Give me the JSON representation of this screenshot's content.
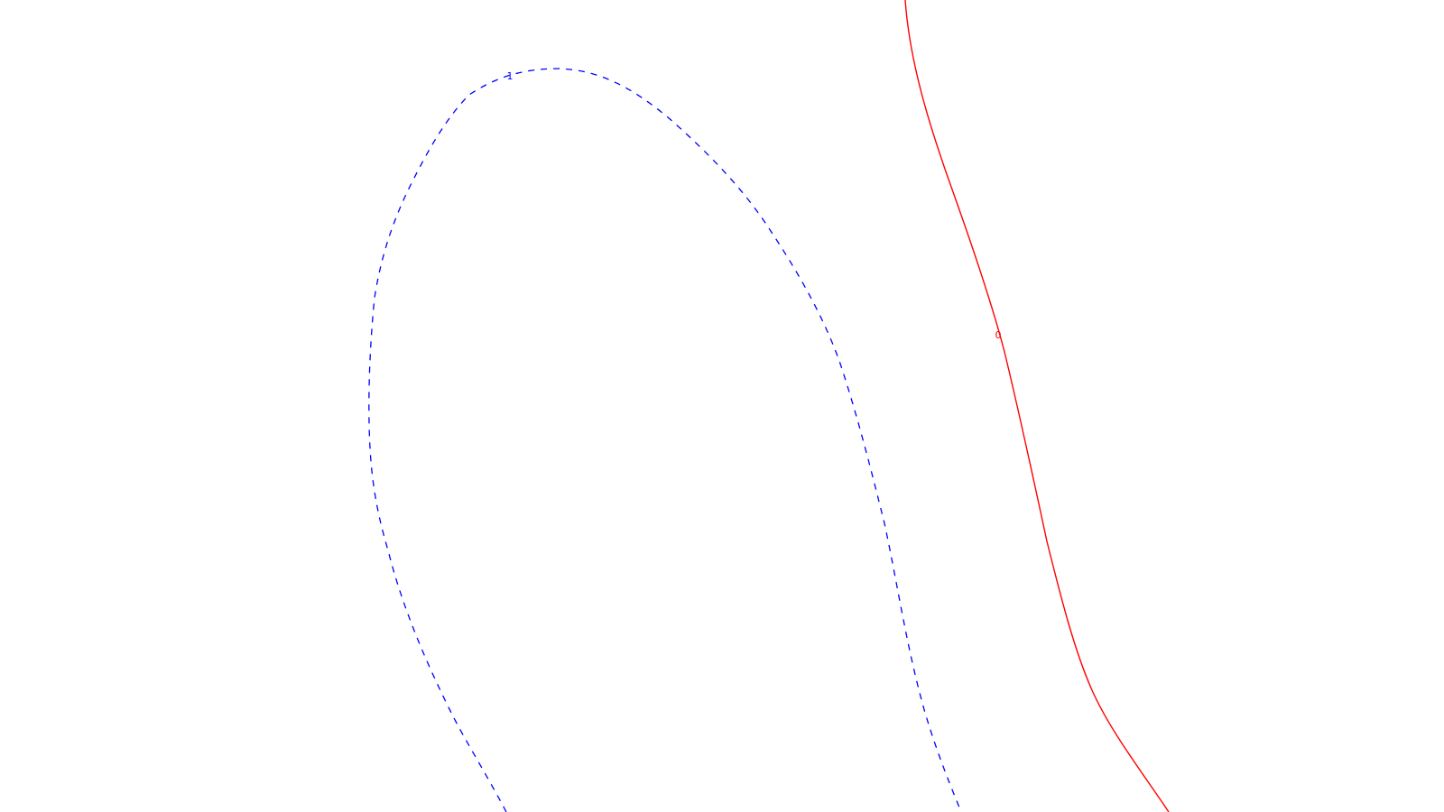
{
  "chart_data": {
    "type": "contour",
    "grid": false,
    "series": [
      {
        "level": "1",
        "line_style": "dashed",
        "color": "#0000ff",
        "label": "1"
      },
      {
        "level": "0",
        "line_style": "solid",
        "color": "#ff0000",
        "label": "0"
      }
    ]
  }
}
